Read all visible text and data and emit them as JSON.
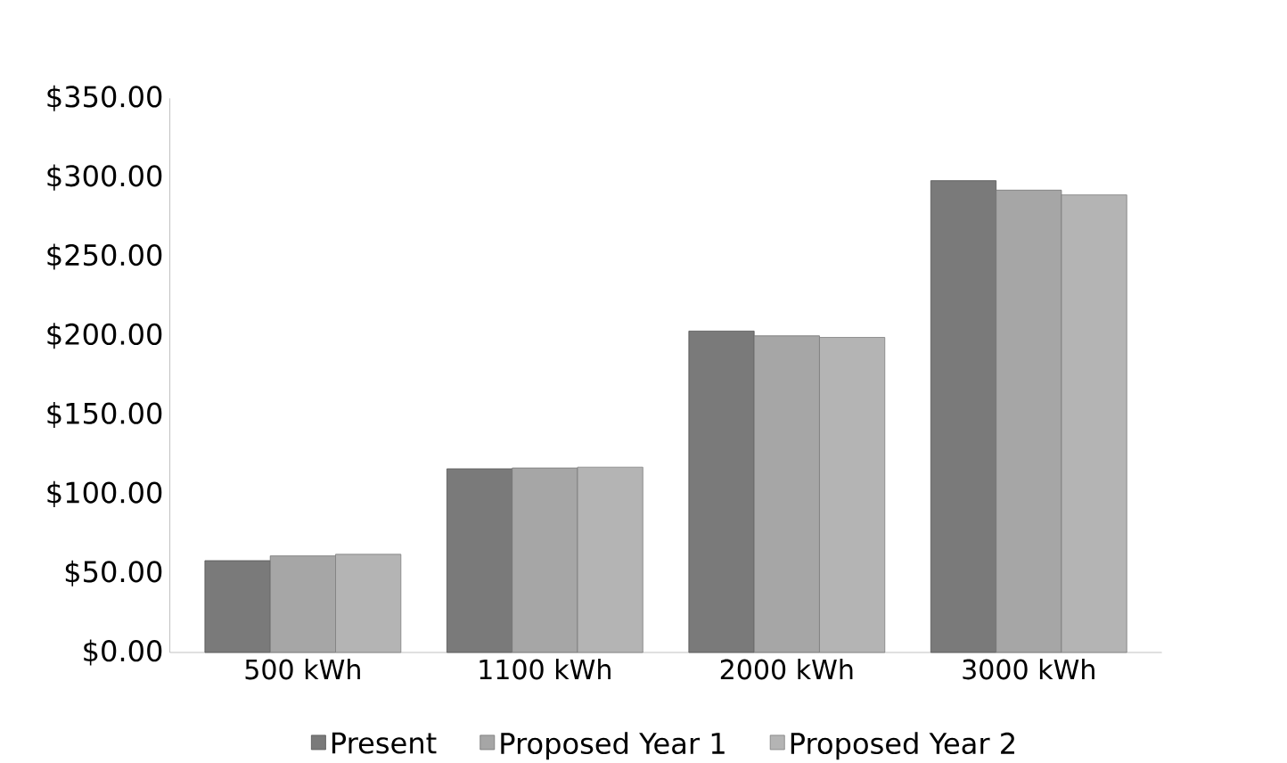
{
  "chart_data": {
    "type": "bar",
    "categories": [
      "500 kWh",
      "1100 kWh",
      "2000 kWh",
      "3000 kWh"
    ],
    "series": [
      {
        "name": "Present",
        "color": "#7a7a7a",
        "values": [
          58,
          116,
          203,
          298
        ]
      },
      {
        "name": "Proposed Year 1",
        "color": "#a6a6a6",
        "values": [
          61,
          116.5,
          200,
          292
        ]
      },
      {
        "name": "Proposed Year 2",
        "color": "#b4b4b4",
        "values": [
          62,
          117,
          199,
          289
        ]
      }
    ],
    "ylim": [
      0,
      350
    ],
    "yticks": [
      {
        "value": 0,
        "label": "$0.00"
      },
      {
        "value": 50,
        "label": "$50.00"
      },
      {
        "value": 100,
        "label": "$100.00"
      },
      {
        "value": 150,
        "label": "$150.00"
      },
      {
        "value": 200,
        "label": "$200.00"
      },
      {
        "value": 250,
        "label": "$250.00"
      },
      {
        "value": 300,
        "label": "$300.00"
      },
      {
        "value": 350,
        "label": "$350.00"
      }
    ],
    "grid": false,
    "legend": "bottom"
  }
}
